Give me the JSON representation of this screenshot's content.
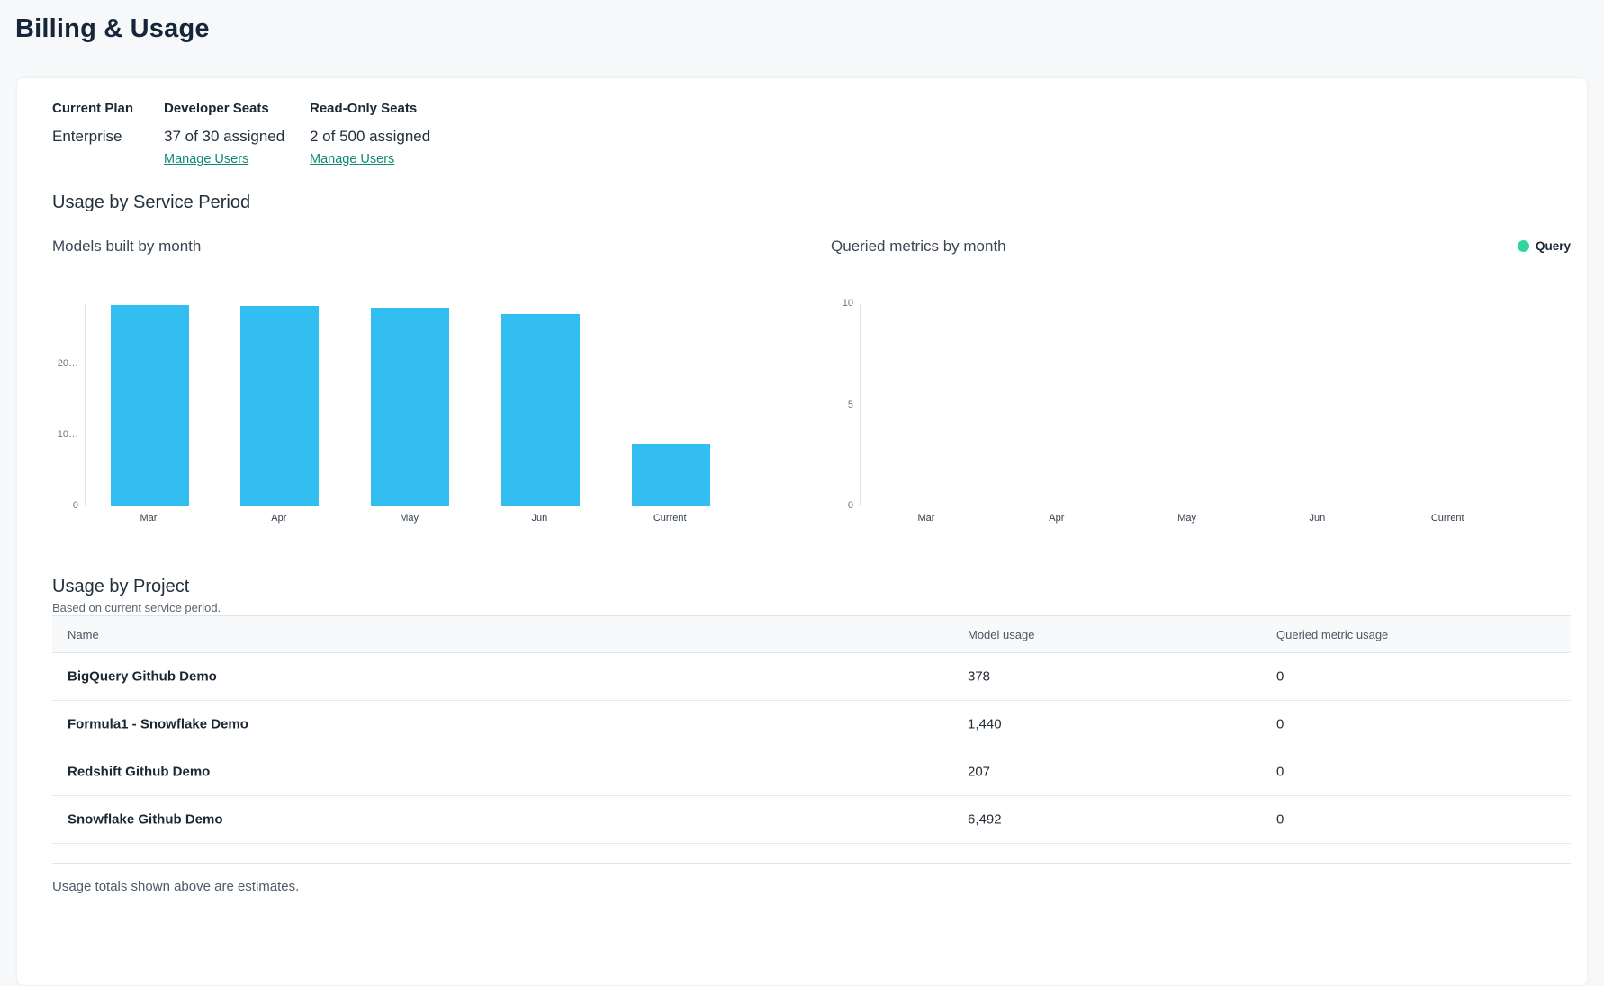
{
  "page": {
    "title": "Billing & Usage"
  },
  "plan_summary": {
    "columns": [
      {
        "label": "Current Plan",
        "value": "Enterprise"
      },
      {
        "label": "Developer Seats",
        "value": "37 of 30 assigned",
        "link": "Manage Users"
      },
      {
        "label": "Read-Only Seats",
        "value": "2 of 500 assigned",
        "link": "Manage Users"
      }
    ]
  },
  "usage_section": {
    "title": "Usage by Service Period"
  },
  "chart_data": [
    {
      "type": "bar",
      "title": "Models built by month",
      "categories": [
        "Mar",
        "Apr",
        "May",
        "Jun",
        "Current"
      ],
      "values": [
        28300,
        28100,
        27900,
        27000,
        8600
      ],
      "xlabel": "",
      "ylabel": "",
      "ylim": [
        0,
        28500
      ],
      "yticks": [
        0,
        10000,
        20000
      ],
      "ytick_labels": [
        "0",
        "10…",
        "20…"
      ],
      "bar_color": "#33bef2",
      "grid": false
    },
    {
      "type": "bar",
      "title": "Queried metrics by month",
      "categories": [
        "Mar",
        "Apr",
        "May",
        "Jun",
        "Current"
      ],
      "series": [
        {
          "name": "Query",
          "values": [
            0,
            0,
            0,
            0,
            0
          ],
          "color": "#30d5a0"
        }
      ],
      "xlabel": "",
      "ylabel": "",
      "ylim": [
        0,
        10
      ],
      "yticks": [
        0,
        5,
        10
      ],
      "ytick_labels": [
        "0",
        "5",
        "10"
      ],
      "grid": false,
      "legend": {
        "label": "Query",
        "color": "#30d5a0",
        "position": "top-right"
      }
    }
  ],
  "projects_section": {
    "title": "Usage by Project",
    "subtitle": "Based on current service period.",
    "table": {
      "columns": [
        "Name",
        "Model usage",
        "Queried metric usage"
      ],
      "rows": [
        {
          "name": "BigQuery Github Demo",
          "model_usage": "378",
          "queried_metric_usage": "0"
        },
        {
          "name": "Formula1 - Snowflake Demo",
          "model_usage": "1,440",
          "queried_metric_usage": "0"
        },
        {
          "name": "Redshift Github Demo",
          "model_usage": "207",
          "queried_metric_usage": "0"
        },
        {
          "name": "Snowflake Github Demo",
          "model_usage": "6,492",
          "queried_metric_usage": "0"
        }
      ]
    },
    "footnote": "Usage totals shown above are estimates."
  }
}
